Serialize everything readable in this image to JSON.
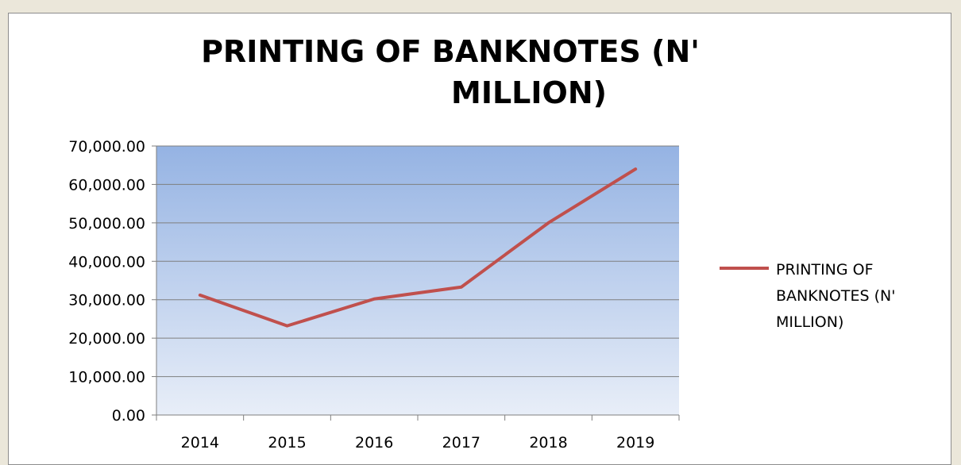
{
  "chart_data": {
    "type": "line",
    "title": "PRINTING OF BANKNOTES (N' MILLION)",
    "title_lines": [
      "PRINTING OF BANKNOTES (N'",
      "MILLION)"
    ],
    "categories": [
      "2014",
      "2015",
      "2016",
      "2017",
      "2018",
      "2019"
    ],
    "series": [
      {
        "name": "PRINTING OF BANKNOTES (N' MILLION)",
        "name_lines": [
          "PRINTING OF",
          "BANKNOTES (N'",
          "MILLION)"
        ],
        "values": [
          31200,
          23200,
          30200,
          33300,
          50000,
          64000
        ],
        "color": "#c0504d"
      }
    ],
    "ylim": [
      0,
      70000
    ],
    "yticks": [
      0,
      10000,
      20000,
      30000,
      40000,
      50000,
      60000,
      70000
    ],
    "ytick_labels": [
      "0.00",
      "10,000.00",
      "20,000.00",
      "30,000.00",
      "40,000.00",
      "50,000.00",
      "60,000.00",
      "70,000.00"
    ],
    "xlabel": "",
    "ylabel": "",
    "grid": true,
    "legend_position": "right",
    "plot_background": [
      "#95b3e3",
      "#e8eef8"
    ]
  }
}
